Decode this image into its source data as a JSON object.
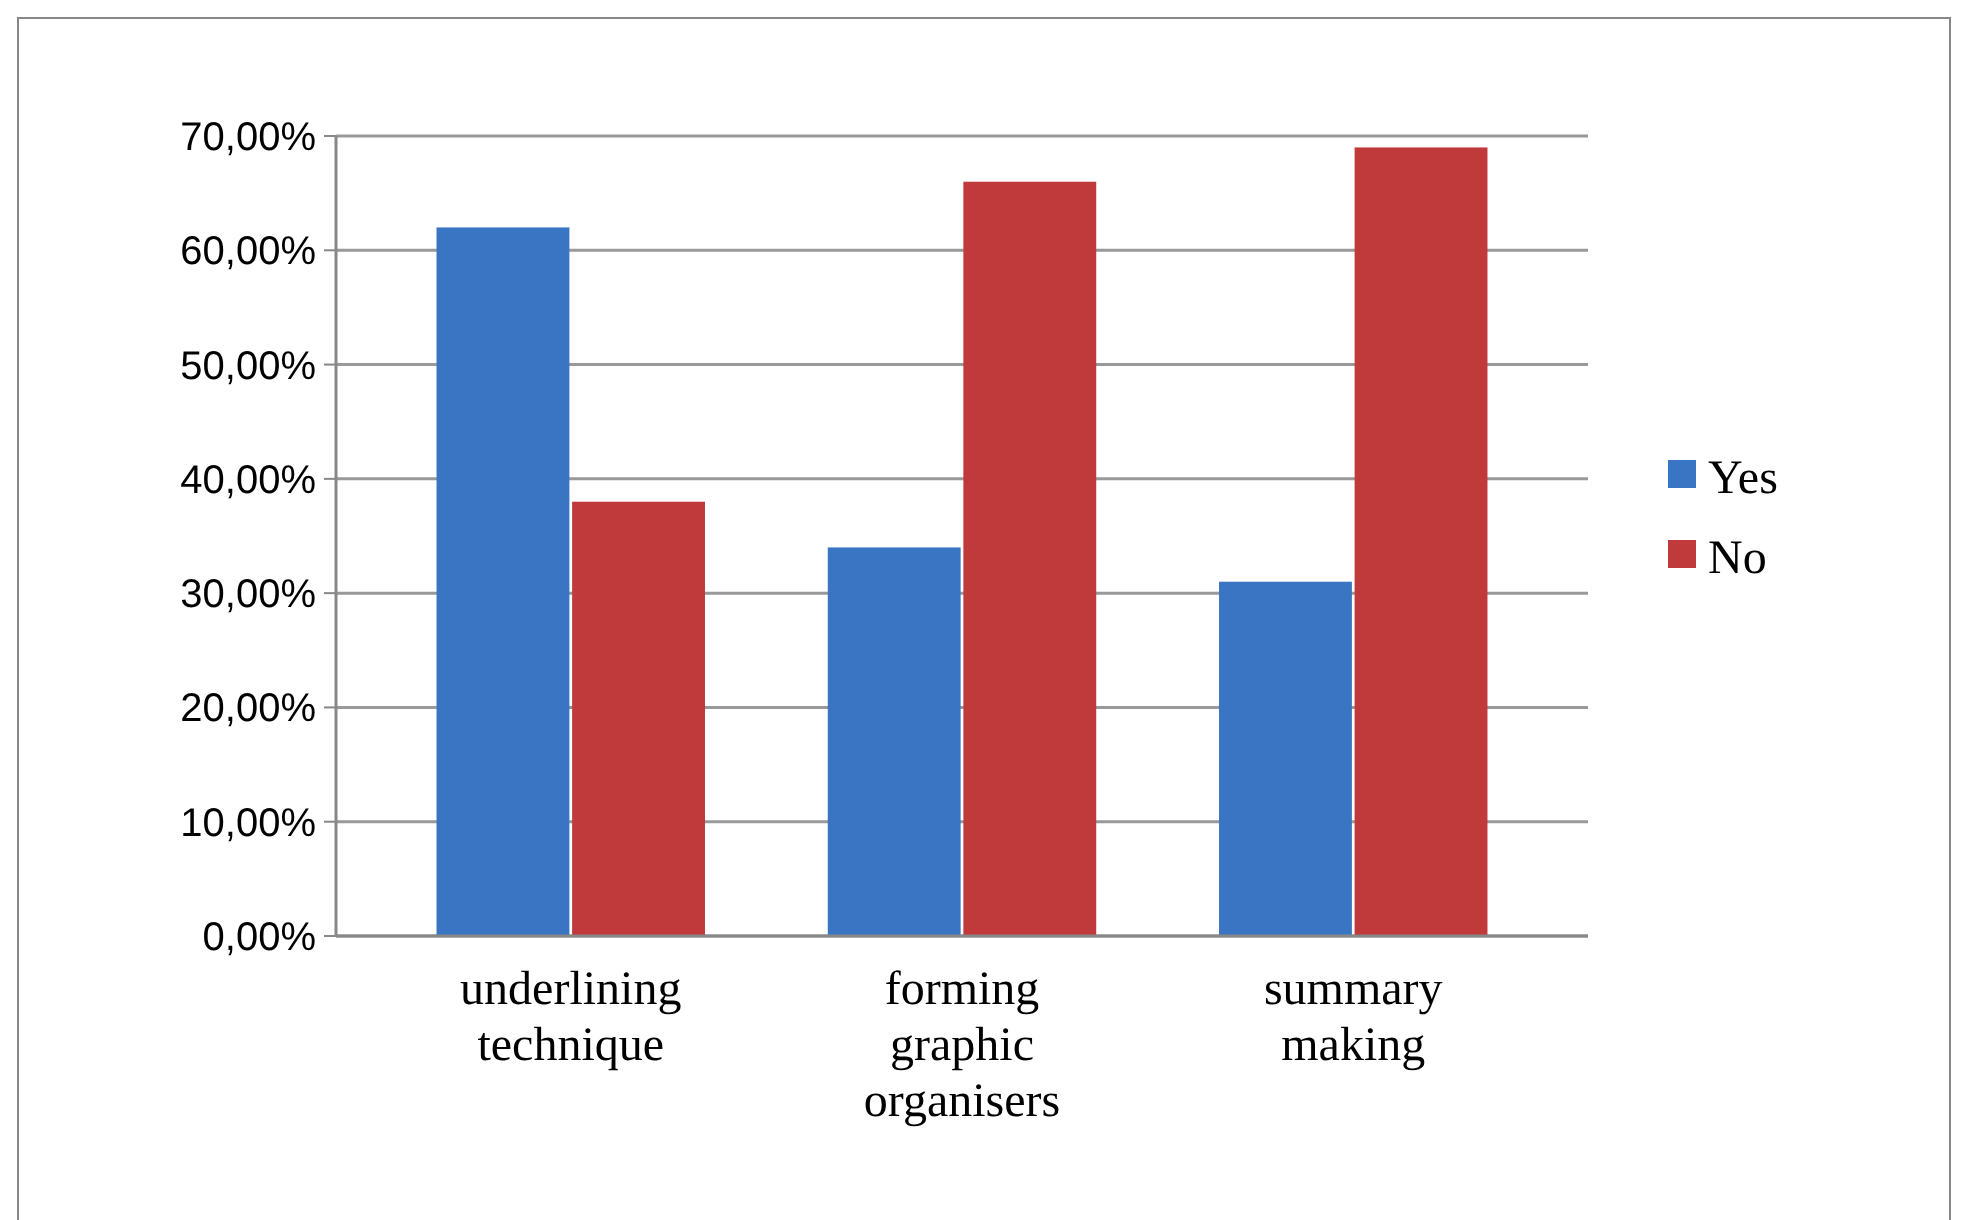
{
  "chart_data": {
    "type": "bar",
    "categories": [
      "underlining technique",
      "forming graphic organisers",
      "summary making"
    ],
    "series": [
      {
        "name": "Yes",
        "color": "#3a75c4",
        "values": [
          62,
          34,
          31
        ]
      },
      {
        "name": "No",
        "color": "#c0393b",
        "values": [
          38,
          66,
          69
        ]
      }
    ],
    "ylim": [
      0,
      70
    ],
    "yticks": [
      {
        "value": 0,
        "label": "0,00%"
      },
      {
        "value": 10,
        "label": "10,00%"
      },
      {
        "value": 20,
        "label": "20,00%"
      },
      {
        "value": 30,
        "label": "30,00%"
      },
      {
        "value": 40,
        "label": "40,00%"
      },
      {
        "value": 50,
        "label": "50,00%"
      },
      {
        "value": 60,
        "label": "60,00%"
      },
      {
        "value": 70,
        "label": "70,00%"
      }
    ],
    "grid": "y",
    "legend": "right"
  }
}
